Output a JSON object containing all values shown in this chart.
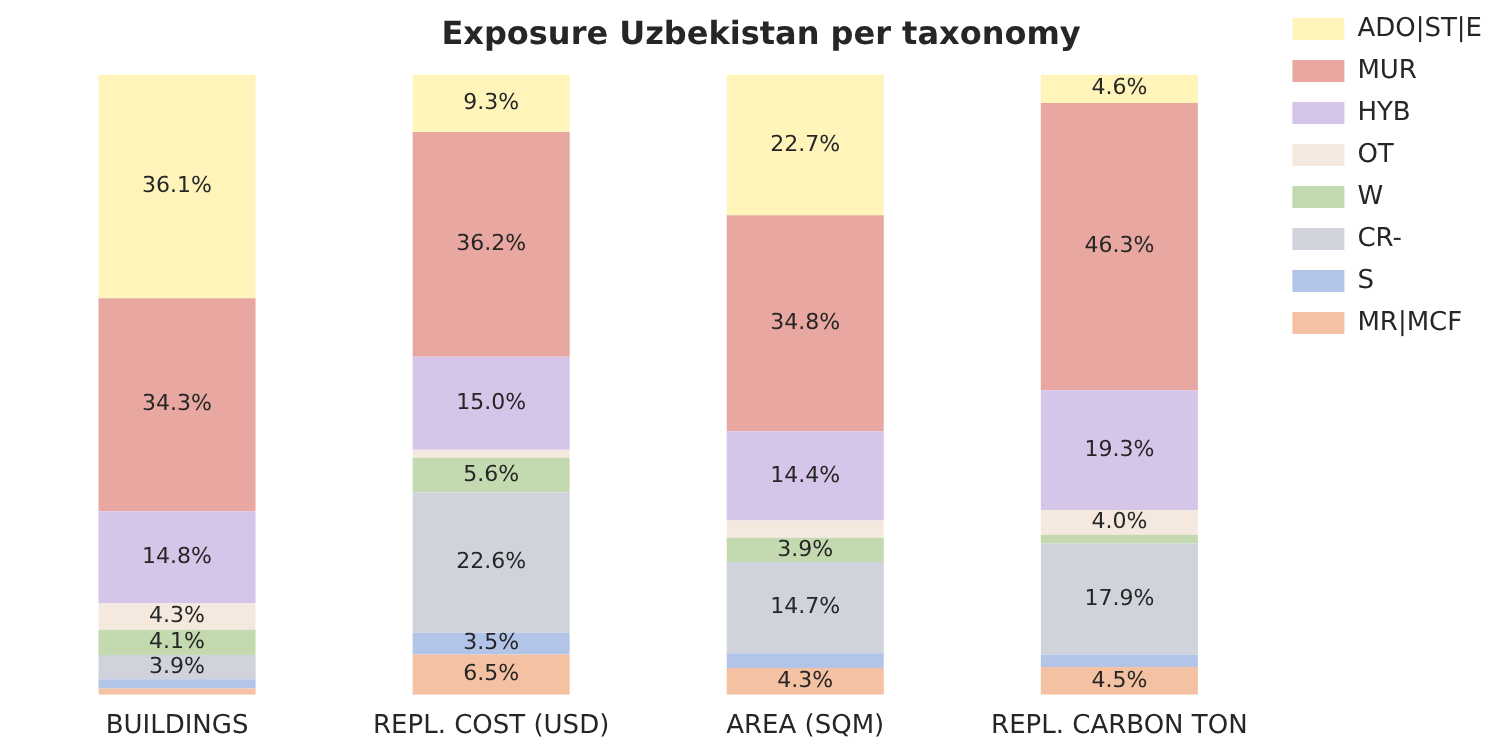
{
  "chart_data": {
    "type": "bar",
    "title": "Exposure Uzbekistan per taxonomy",
    "stacked": true,
    "legend": "top right",
    "grid": false,
    "tick_labels": "x",
    "ylim": [
      0,
      100
    ],
    "categories": [
      "BUILDINGS",
      "REPL. COST (USD)",
      "AREA (SQM)",
      "REPL. CARBON TON"
    ],
    "series": [
      {
        "name": "MR|MCF",
        "color": "#f5c1a3",
        "values": [
          1.0,
          6.5,
          4.3,
          4.5
        ],
        "value_labels": [
          null,
          "6.5%",
          "4.3%",
          "4.5%"
        ]
      },
      {
        "name": "S",
        "color": "#b2c5e8",
        "values": [
          1.5,
          3.5,
          2.4,
          2.0
        ],
        "value_labels": [
          null,
          "3.5%",
          null,
          null
        ]
      },
      {
        "name": "CR-",
        "color": "#d0d3db",
        "values": [
          3.9,
          22.6,
          14.7,
          17.9
        ],
        "value_labels": [
          "3.9%",
          "22.6%",
          "14.7%",
          "17.9%"
        ]
      },
      {
        "name": "W",
        "color": "#c3dab0",
        "values": [
          4.1,
          5.6,
          3.9,
          1.4
        ],
        "value_labels": [
          "4.1%",
          "5.6%",
          "3.9%",
          null
        ]
      },
      {
        "name": "OT",
        "color": "#f5e9df",
        "values": [
          4.3,
          1.3,
          2.8,
          4.0
        ],
        "value_labels": [
          "4.3%",
          null,
          null,
          "4.0%"
        ]
      },
      {
        "name": "HYB",
        "color": "#d5c5e8",
        "values": [
          14.8,
          15.0,
          14.4,
          19.3
        ],
        "value_labels": [
          "14.8%",
          "15.0%",
          "14.4%",
          "19.3%"
        ]
      },
      {
        "name": "MUR",
        "color": "#e8a8a1",
        "values": [
          34.3,
          36.2,
          34.8,
          46.3
        ],
        "value_labels": [
          "34.3%",
          "36.2%",
          "34.8%",
          "46.3%"
        ]
      },
      {
        "name": "ADO|ST|E",
        "color": "#fff5bb",
        "values": [
          36.1,
          9.3,
          22.7,
          4.6
        ],
        "value_labels": [
          "36.1%",
          "9.3%",
          "22.7%",
          "4.6%"
        ]
      }
    ]
  }
}
